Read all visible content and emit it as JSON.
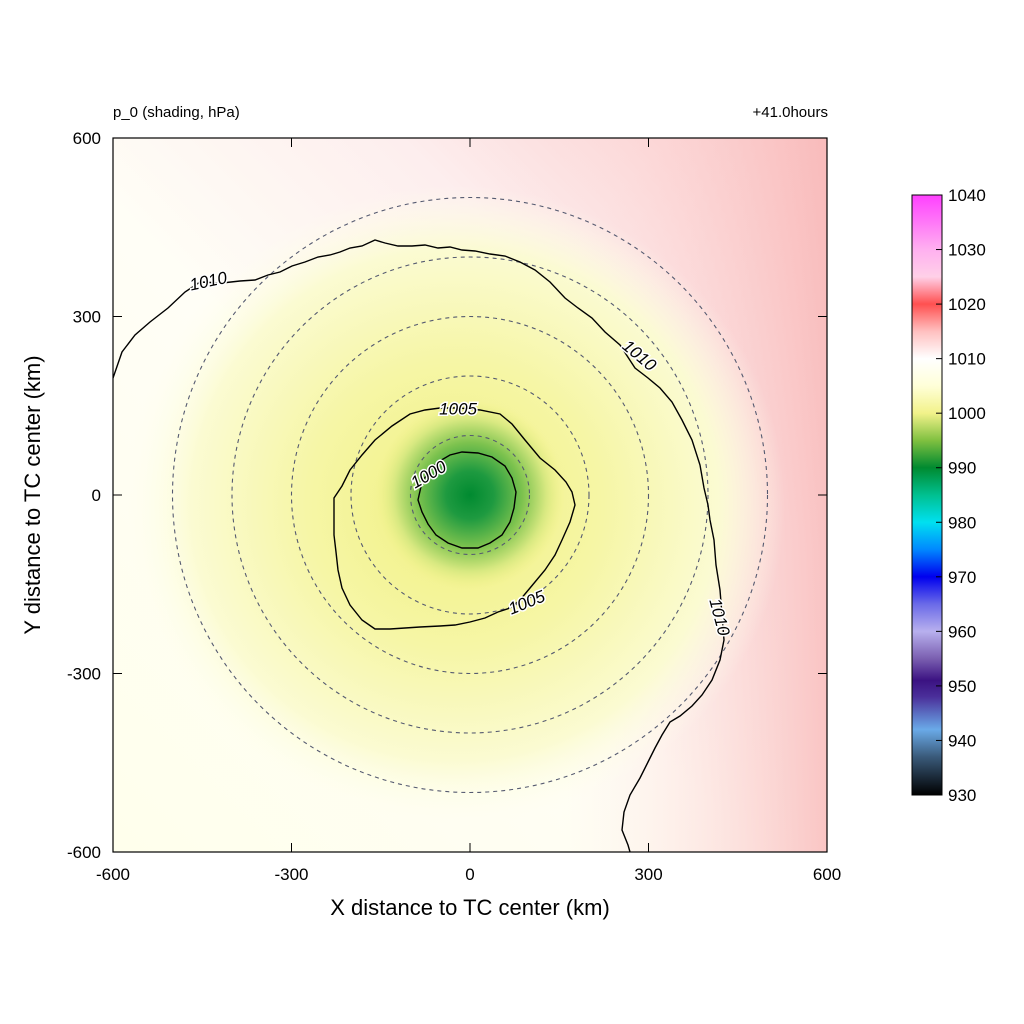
{
  "chart_data": {
    "type": "heatmap",
    "title_left": "p_0 (shading, hPa)",
    "title_right": "+41.0hours",
    "xlabel": "X distance to TC center (km)",
    "ylabel": "Y distance to TC center (km)",
    "xlim": [
      -600,
      600
    ],
    "ylim": [
      -600,
      600
    ],
    "xticks": [
      -600,
      -300,
      0,
      300,
      600
    ],
    "yticks": [
      -600,
      -300,
      0,
      300,
      600
    ],
    "xtick_labels": [
      "-600",
      "-300",
      "0",
      "300",
      "600"
    ],
    "ytick_labels": [
      "-600",
      "-300",
      "0",
      "300",
      "600"
    ],
    "center_pressure_min": 990,
    "range_rings_km": [
      100,
      200,
      300,
      400,
      500
    ],
    "contours": [
      {
        "level": 1000,
        "label": "1000"
      },
      {
        "level": 1005,
        "label": "1005"
      },
      {
        "level": 1010,
        "label": "1010"
      }
    ],
    "contour_labels": [
      {
        "text": "1010",
        "x": -440,
        "y": 360,
        "angle": -12
      },
      {
        "text": "1010",
        "x": 285,
        "y": 235,
        "angle": 40
      },
      {
        "text": "1010",
        "x": 420,
        "y": -205,
        "angle": 75
      },
      {
        "text": "1005",
        "x": -20,
        "y": 145,
        "angle": 0
      },
      {
        "text": "1005",
        "x": 95,
        "y": -180,
        "angle": -22
      },
      {
        "text": "1000",
        "x": -70,
        "y": 35,
        "angle": -30
      }
    ],
    "colorbar": {
      "min": 930,
      "max": 1040,
      "ticks": [
        930,
        940,
        950,
        960,
        970,
        980,
        990,
        1000,
        1010,
        1020,
        1030,
        1040
      ],
      "tick_labels": [
        "930",
        "940",
        "950",
        "960",
        "970",
        "980",
        "990",
        "1000",
        "1010",
        "1020",
        "1030",
        "1040"
      ],
      "stops": [
        {
          "value": 930,
          "color": "#000000"
        },
        {
          "value": 937,
          "color": "#3a5a7a"
        },
        {
          "value": 942,
          "color": "#6aaae8"
        },
        {
          "value": 948,
          "color": "#4a2f9a"
        },
        {
          "value": 951,
          "color": "#3b1282"
        },
        {
          "value": 955,
          "color": "#7a5fb0"
        },
        {
          "value": 960,
          "color": "#b8b0ee"
        },
        {
          "value": 965,
          "color": "#6a6ae8"
        },
        {
          "value": 970,
          "color": "#0000ee"
        },
        {
          "value": 975,
          "color": "#0088ff"
        },
        {
          "value": 980,
          "color": "#00e0f0"
        },
        {
          "value": 985,
          "color": "#00c090"
        },
        {
          "value": 990,
          "color": "#008a30"
        },
        {
          "value": 995,
          "color": "#80c040"
        },
        {
          "value": 1000,
          "color": "#f2f28a"
        },
        {
          "value": 1005,
          "color": "#ffffd8"
        },
        {
          "value": 1010,
          "color": "#ffffff"
        },
        {
          "value": 1015,
          "color": "#ffc0c0"
        },
        {
          "value": 1020,
          "color": "#ff5050"
        },
        {
          "value": 1025,
          "color": "#ffd0e8"
        },
        {
          "value": 1030,
          "color": "#ffb0f0"
        },
        {
          "value": 1040,
          "color": "#ff40ff"
        }
      ]
    }
  }
}
